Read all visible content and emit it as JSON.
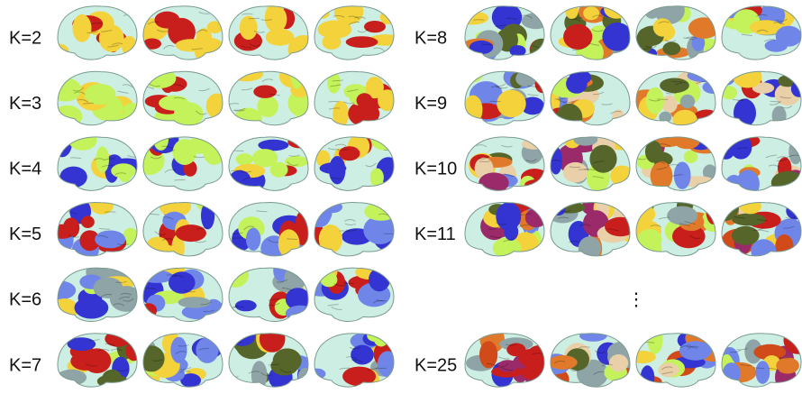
{
  "left_panel": {
    "rows": [
      {
        "label": "K=2"
      },
      {
        "label": "K=3"
      },
      {
        "label": "K=4"
      },
      {
        "label": "K=5"
      },
      {
        "label": "K=6"
      },
      {
        "label": "K=7"
      }
    ]
  },
  "right_panel": {
    "rows": [
      {
        "label": "K=8"
      },
      {
        "label": "K=9"
      },
      {
        "label": "K=10"
      },
      {
        "label": "K=11"
      },
      {
        "label": "K=25"
      }
    ],
    "ellipsis": "⋮"
  }
}
